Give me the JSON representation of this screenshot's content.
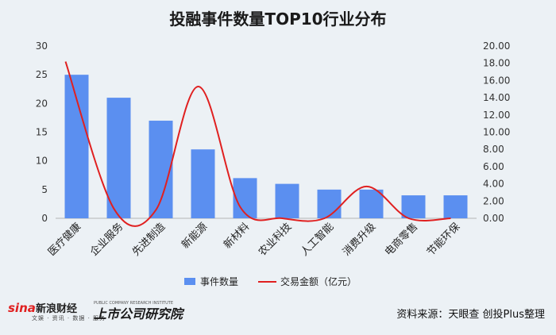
{
  "chart_data": {
    "type": "bar",
    "title": "投融事件数量TOP10行业分布",
    "categories": [
      "医疗健康",
      "企业服务",
      "先进制造",
      "新能源",
      "新材料",
      "农业科技",
      "人工智能",
      "消费升级",
      "电商零售",
      "节能环保"
    ],
    "series": [
      {
        "name": "事件数量",
        "type": "bar",
        "axis": "left",
        "color": "#5b8ff0",
        "values": [
          25,
          21,
          17,
          12,
          7,
          6,
          5,
          5,
          4,
          4
        ]
      },
      {
        "name": "交易金额（亿元）",
        "type": "line",
        "axis": "right",
        "color": "#e02020",
        "values": [
          18.2,
          1.1,
          1.0,
          15.3,
          1.3,
          0.0,
          0.0,
          3.7,
          0.0,
          0.0
        ]
      }
    ],
    "y_left": {
      "ylim": [
        0,
        30
      ],
      "ticks": [
        "0",
        "5",
        "10",
        "15",
        "20",
        "25",
        "30"
      ]
    },
    "y_right": {
      "ylim": [
        0,
        20
      ],
      "ticks": [
        "0.00",
        "2.00",
        "4.00",
        "6.00",
        "8.00",
        "10.00",
        "12.00",
        "14.00",
        "16.00",
        "18.00",
        "20.00"
      ]
    },
    "grid": false,
    "legend": "bottom"
  },
  "footer": {
    "sina_logo": "sina新浪财经",
    "sina_sub": "文娱 · 资讯 · 数据 · 服务",
    "research_logo": "上市公司研究院",
    "research_sub": "PUBLIC COMPANY RESEARCH INSTITUTE",
    "source": "资料来源：天眼查 创投Plus整理"
  }
}
